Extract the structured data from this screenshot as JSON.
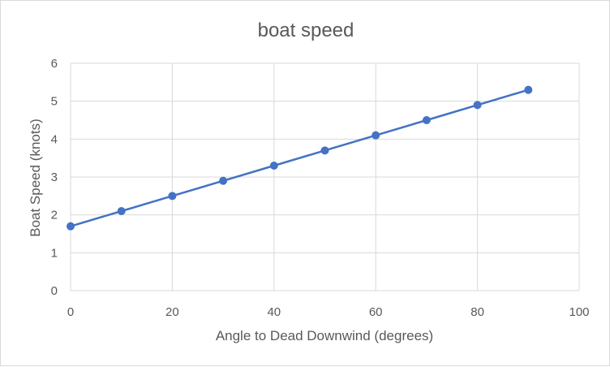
{
  "chart_data": {
    "type": "line",
    "title": "boat speed",
    "xlabel": "Angle to Dead Downwind (degrees)",
    "ylabel": "Boat Speed (knots)",
    "xlim": [
      0,
      100
    ],
    "ylim": [
      0,
      6
    ],
    "x_ticks": [
      0,
      20,
      40,
      60,
      80,
      100
    ],
    "y_ticks": [
      0,
      1,
      2,
      3,
      4,
      5,
      6
    ],
    "grid": true,
    "legend": "none",
    "color": "#4472c4",
    "series": [
      {
        "x": [
          0,
          10,
          20,
          30,
          40,
          50,
          60,
          70,
          80,
          90
        ],
        "y": [
          1.7,
          2.1,
          2.5,
          2.9,
          3.3,
          3.7,
          4.1,
          4.5,
          4.9,
          5.3
        ]
      }
    ]
  }
}
